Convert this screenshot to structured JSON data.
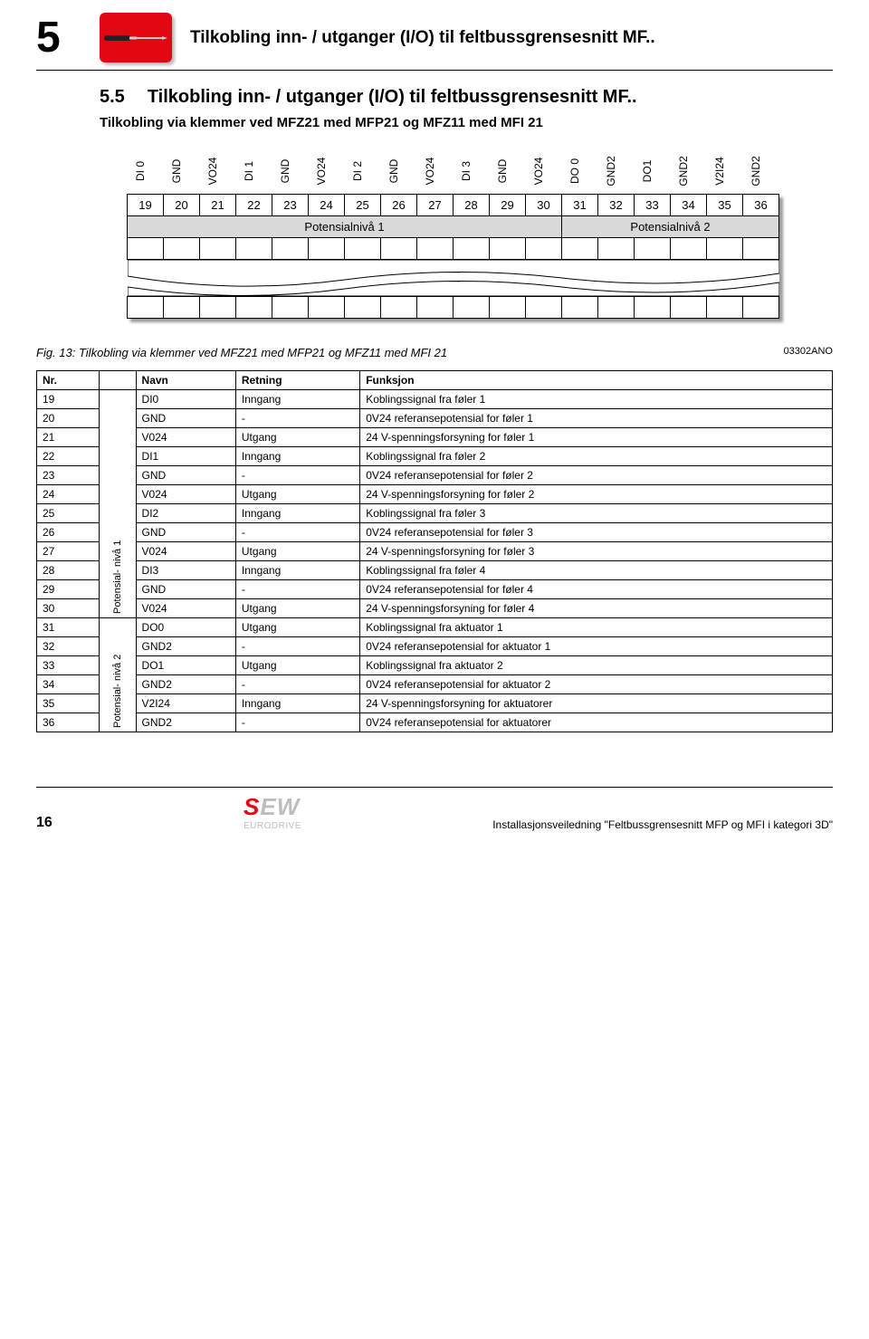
{
  "chapter_num": "5",
  "header_title": "Tilkobling inn- / utganger (I/O) til feltbussgrensesnitt MF..",
  "section_num": "5.5",
  "section_title": "Tilkobling  inn- / utganger (I/O) til feltbussgrensesnitt MF..",
  "subtitle": "Tilkobling via klemmer ved MFZ21 med MFP21 og MFZ11 med MFI 21",
  "colors": {
    "accent": "#e30613",
    "shade": "#d9d9d9",
    "logo_gray": "#bdbdbd"
  },
  "terminal": {
    "pin_labels": [
      "DI 0",
      "GND",
      "VO24",
      "DI 1",
      "GND",
      "VO24",
      "DI 2",
      "GND",
      "VO24",
      "DI 3",
      "GND",
      "VO24",
      "DO 0",
      "GND2",
      "DO1",
      "GND2",
      "V2I24",
      "GND2"
    ],
    "pin_numbers": [
      "19",
      "20",
      "21",
      "22",
      "23",
      "24",
      "25",
      "26",
      "27",
      "28",
      "29",
      "30",
      "31",
      "32",
      "33",
      "34",
      "35",
      "36"
    ],
    "level1_label": "Potensialnivå 1",
    "level1_span": 12,
    "level2_label": "Potensialnivå 2",
    "level2_span": 6
  },
  "fig_caption": "Fig. 13: Tilkobling via klemmer ved MFZ21 med MFP21 og MFZ11 med MFI 21",
  "fig_code": "03302ANO",
  "table": {
    "headers": [
      "Nr.",
      "",
      "Navn",
      "Retning",
      "Funksjon"
    ],
    "group1_label": "Potensial-\nnivå 1",
    "group2_label": "Potensial-\nnivå 2",
    "group1_rows": 12,
    "group2_rows": 6,
    "rows": [
      [
        "19",
        "DI0",
        "Inngang",
        "Koblingssignal fra føler 1"
      ],
      [
        "20",
        "GND",
        "-",
        "0V24 referansepotensial for føler 1"
      ],
      [
        "21",
        "V024",
        "Utgang",
        "24 V-spenningsforsyning for føler 1"
      ],
      [
        "22",
        "DI1",
        "Inngang",
        "Koblingssignal fra føler 2"
      ],
      [
        "23",
        "GND",
        "-",
        "0V24 referansepotensial for føler 2"
      ],
      [
        "24",
        "V024",
        "Utgang",
        "24 V-spenningsforsyning for føler 2"
      ],
      [
        "25",
        "DI2",
        "Inngang",
        "Koblingssignal fra føler 3"
      ],
      [
        "26",
        "GND",
        "-",
        "0V24 referansepotensial for føler 3"
      ],
      [
        "27",
        "V024",
        "Utgang",
        "24 V-spenningsforsyning for føler 3"
      ],
      [
        "28",
        "DI3",
        "Inngang",
        "Koblingssignal fra føler 4"
      ],
      [
        "29",
        "GND",
        "-",
        "0V24 referansepotensial for føler 4"
      ],
      [
        "30",
        "V024",
        "Utgang",
        "24 V-spenningsforsyning for føler 4"
      ],
      [
        "31",
        "DO0",
        "Utgang",
        "Koblingssignal fra aktuator 1"
      ],
      [
        "32",
        "GND2",
        "-",
        "0V24 referansepotensial for aktuator 1"
      ],
      [
        "33",
        "DO1",
        "Utgang",
        "Koblingssignal fra aktuator 2"
      ],
      [
        "34",
        "GND2",
        "-",
        "0V24 referansepotensial for aktuator 2"
      ],
      [
        "35",
        "V2I24",
        "Inngang",
        "24 V-spenningsforsyning for aktuatorer"
      ],
      [
        "36",
        "GND2",
        "-",
        "0V24 referansepotensial for aktuatorer"
      ]
    ]
  },
  "footer": {
    "page": "16",
    "logo_main": "SEW",
    "logo_sub": "EURODRIVE",
    "text": "Installasjonsveiledning \"Feltbussgrensesnitt MFP og MFI i kategori 3D\""
  }
}
